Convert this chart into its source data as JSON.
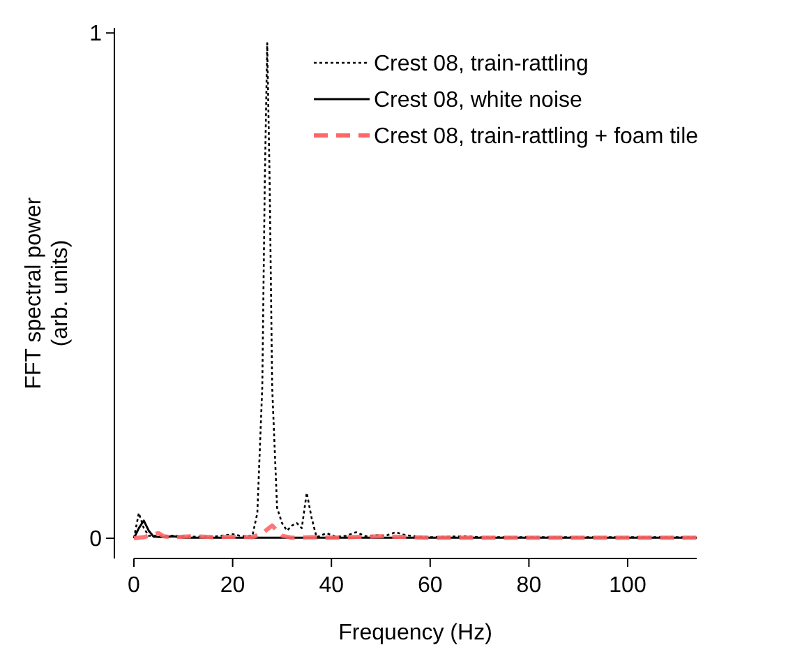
{
  "chart_data": {
    "type": "line",
    "xlabel": "Frequency (Hz)",
    "ylabel": "FFT spectral power\n(arb. units)",
    "xlim": [
      0,
      114
    ],
    "xticks": [
      0,
      20,
      40,
      60,
      80,
      100
    ],
    "ylim": [
      -0.04,
      1.01
    ],
    "yticks": [
      0,
      1
    ],
    "grid": false,
    "legend": "top right",
    "series": [
      {
        "name": "Crest 08, train-rattling",
        "color": "#000000",
        "line_style": "dotted",
        "x": [
          0,
          1,
          2,
          3,
          5,
          8,
          12,
          16,
          20,
          22,
          24,
          25,
          26,
          26.5,
          27,
          27.5,
          28,
          29,
          30,
          31,
          32,
          33,
          34,
          35,
          36,
          37,
          39,
          41,
          43,
          45,
          47,
          49,
          51,
          53,
          55,
          57,
          60,
          67,
          70,
          80,
          90,
          100,
          114
        ],
        "values": [
          0,
          0.05,
          0.02,
          0.005,
          0.005,
          0.005,
          0.003,
          0.003,
          0.008,
          0.004,
          0.005,
          0.05,
          0.3,
          0.7,
          0.98,
          0.7,
          0.3,
          0.06,
          0.03,
          0.015,
          0.025,
          0.03,
          0.02,
          0.09,
          0.04,
          0.002,
          0.01,
          0.003,
          0.005,
          0.012,
          0.004,
          0.006,
          0.005,
          0.012,
          0.006,
          0.004,
          0.002,
          0.004,
          0.002,
          0.002,
          0.002,
          0.002,
          0.002
        ]
      },
      {
        "name": "Crest 08, white noise",
        "color": "#000000",
        "line_style": "solid",
        "x": [
          0,
          1,
          2,
          3,
          4,
          6,
          8,
          10,
          20,
          40,
          60,
          80,
          100,
          114
        ],
        "values": [
          0,
          0.02,
          0.035,
          0.015,
          0.003,
          0.002,
          0.004,
          0.001,
          0.001,
          0.001,
          0.001,
          0.001,
          0.001,
          0.001
        ]
      },
      {
        "name": "Crest 08, train-rattling + foam tile",
        "color": "#ff6666",
        "line_style": "dashed",
        "x": [
          0,
          2,
          4,
          5,
          6,
          8,
          12,
          16,
          20,
          24,
          26,
          28,
          30,
          32,
          36,
          40,
          50,
          60,
          80,
          100,
          114
        ],
        "values": [
          0,
          0.002,
          0.008,
          0.01,
          0.004,
          0.002,
          0.004,
          0.002,
          0.003,
          0.002,
          0.01,
          0.025,
          0.005,
          0.001,
          0.002,
          0.001,
          0.004,
          0.001,
          0.001,
          0.001,
          0.001
        ]
      }
    ]
  }
}
